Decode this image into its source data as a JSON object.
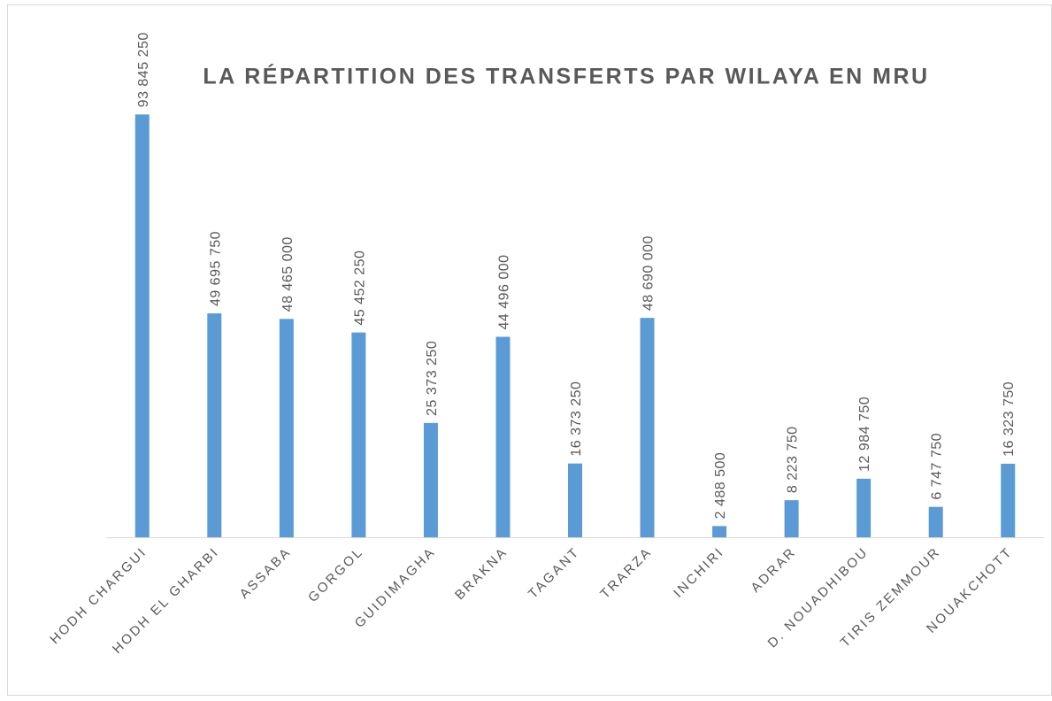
{
  "chart_data": {
    "type": "bar",
    "title": "LA RÉPARTITION DES TRANSFERTS  PAR WILAYA EN MRU",
    "categories": [
      "HODH CHARGUI",
      "HODH EL GHARBI",
      "ASSABA",
      "GORGOL",
      "GUIDIMAGHA",
      "BRAKNA",
      "TAGANT",
      "TRARZA",
      "INCHIRI",
      "ADRAR",
      "D. NOUADHIBOU",
      "TIRIS ZEMMOUR",
      "NOUAKCHOTT"
    ],
    "values": [
      93845250,
      49695750,
      48465000,
      45452250,
      25373250,
      44496000,
      16373250,
      48690000,
      2488500,
      8223750,
      12984750,
      6747750,
      16323750
    ],
    "value_labels": [
      "93 845 250",
      "49 695 750",
      "48 465 000",
      "45 452 250",
      "25 373 250",
      "44 496 000",
      "16 373 250",
      "48 690 000",
      "2 488 500",
      "8 223 750",
      "12 984 750",
      "6 747 750",
      "16 323 750"
    ],
    "color": "#5b9bd5",
    "ylim": [
      0,
      100000000
    ]
  }
}
